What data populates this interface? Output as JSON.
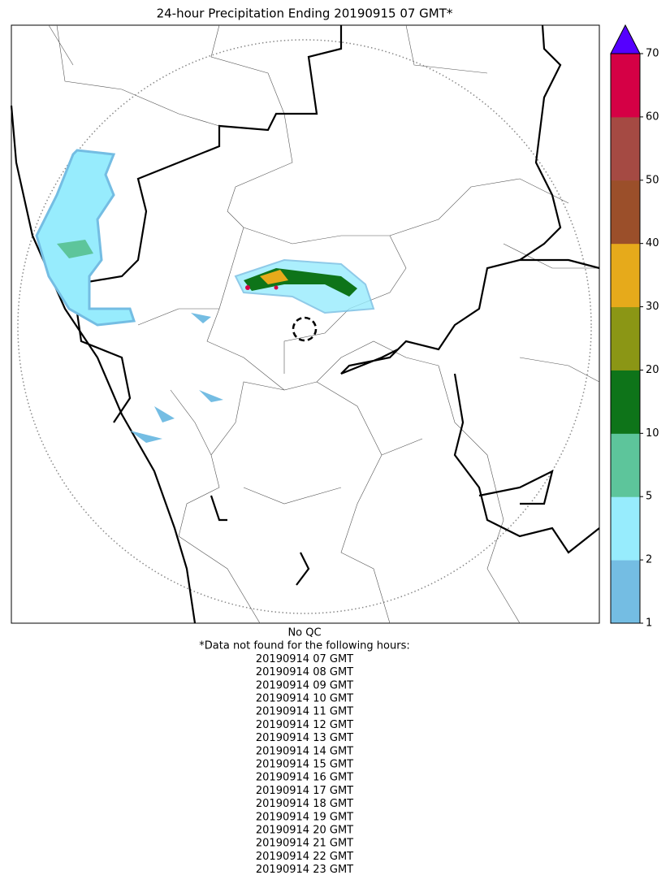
{
  "title": "24-hour Precipitation Ending 20190915 07 GMT*",
  "colorbar": {
    "ticks": [
      1,
      2,
      5,
      10,
      20,
      30,
      40,
      50,
      60,
      70
    ],
    "colors": [
      "#74bde3",
      "#97ecfd",
      "#5dc59b",
      "#0e7419",
      "#8b9615",
      "#e6aa1b",
      "#9b4f2a",
      "#a54a43",
      "#d50045"
    ],
    "extend_color": "#5500ff"
  },
  "notes": [
    "No QC",
    "*Data not found for the following hours:",
    "20190914 07 GMT",
    "20190914 08 GMT",
    "20190914 09 GMT",
    "20190914 10 GMT",
    "20190914 11 GMT",
    "20190914 12 GMT",
    "20190914 13 GMT",
    "20190914 14 GMT",
    "20190914 15 GMT",
    "20190914 16 GMT",
    "20190914 17 GMT",
    "20190914 18 GMT",
    "20190914 19 GMT",
    "20190914 20 GMT",
    "20190914 21 GMT",
    "20190914 22 GMT",
    "20190914 23 GMT"
  ]
}
